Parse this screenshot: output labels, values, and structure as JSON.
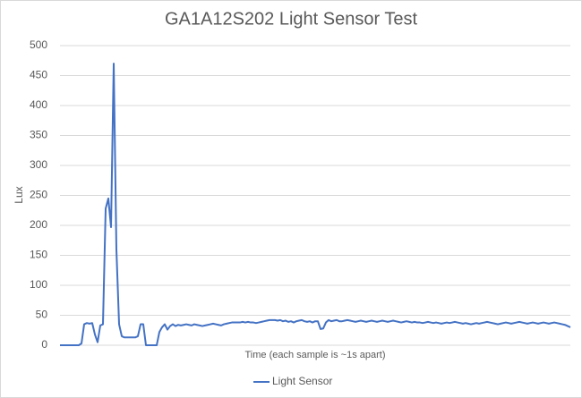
{
  "chart_data": {
    "type": "line",
    "title": "GA1A12S202 Light Sensor Test",
    "x_label": "Time (each sample is ~1s apart)",
    "y_label": "Lux",
    "series": [
      {
        "name": "Light Sensor",
        "color": "#4472c4",
        "values": [
          0,
          0,
          0,
          0,
          0,
          0,
          0,
          0,
          3,
          35,
          37,
          36,
          37,
          18,
          5,
          33,
          35,
          228,
          245,
          197,
          470,
          160,
          35,
          15,
          13,
          13,
          13,
          13,
          13,
          15,
          35,
          35,
          0,
          0,
          0,
          0,
          0,
          22,
          30,
          35,
          26,
          32,
          35,
          32,
          34,
          33,
          34,
          35,
          34,
          33,
          35,
          34,
          33,
          32,
          33,
          34,
          35,
          36,
          35,
          34,
          33,
          35,
          36,
          37,
          38,
          38,
          38,
          38,
          39,
          38,
          39,
          38,
          38,
          37,
          38,
          39,
          40,
          41,
          42,
          42,
          42,
          41,
          42,
          40,
          41,
          39,
          40,
          38,
          40,
          41,
          42,
          40,
          39,
          40,
          38,
          40,
          40,
          27,
          28,
          38,
          42,
          40,
          41,
          42,
          40,
          40,
          41,
          42,
          41,
          40,
          39,
          40,
          41,
          40,
          39,
          40,
          41,
          40,
          39,
          40,
          41,
          40,
          39,
          40,
          41,
          40,
          39,
          38,
          39,
          40,
          39,
          38,
          39,
          38,
          38,
          37,
          38,
          39,
          38,
          37,
          38,
          37,
          36,
          37,
          38,
          37,
          38,
          39,
          38,
          37,
          36,
          37,
          36,
          35,
          36,
          37,
          36,
          37,
          38,
          39,
          38,
          37,
          36,
          35,
          36,
          37,
          38,
          37,
          36,
          37,
          38,
          39,
          38,
          37,
          36,
          37,
          38,
          37,
          36,
          37,
          38,
          37,
          36,
          37,
          38,
          37,
          36,
          35,
          34,
          32,
          30
        ]
      }
    ],
    "ylim": [
      0,
      500
    ],
    "yticks": [
      0,
      50,
      100,
      150,
      200,
      250,
      300,
      350,
      400,
      450,
      500
    ],
    "grid": true,
    "legend": "bottom"
  }
}
